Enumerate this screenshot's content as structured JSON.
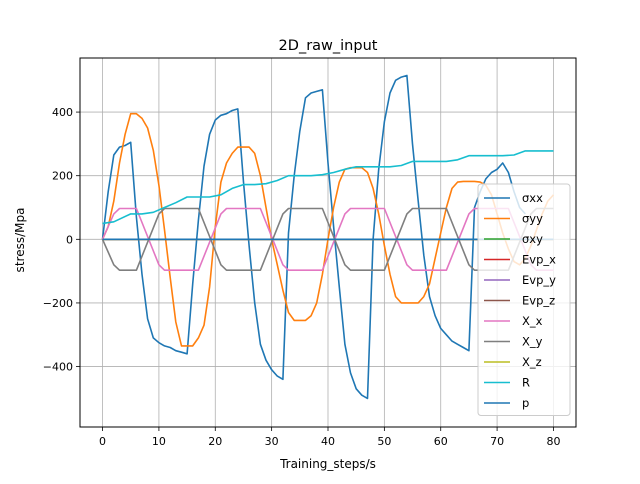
{
  "chart_data": {
    "type": "line",
    "title": "2D_raw_input",
    "xlabel": "Training_steps/s",
    "ylabel": "stress/Mpa",
    "xlim": [
      -4,
      84
    ],
    "ylim": [
      -590,
      570
    ],
    "xticks": [
      0,
      10,
      20,
      30,
      40,
      50,
      60,
      70,
      80
    ],
    "yticks": [
      -400,
      -200,
      0,
      200,
      400
    ],
    "grid": true,
    "legend_position": "right",
    "series": [
      {
        "name": "σxx",
        "color": "#1f77b4",
        "x": [
          0,
          1,
          2,
          3,
          4,
          5,
          6,
          7,
          8,
          9,
          10,
          11,
          12,
          13,
          14,
          15,
          16,
          17,
          18,
          19,
          20,
          21,
          22,
          23,
          24,
          25,
          26,
          27,
          28,
          29,
          30,
          31,
          32,
          33,
          34,
          35,
          36,
          37,
          38,
          39,
          40,
          41,
          42,
          43,
          44,
          45,
          46,
          47,
          48,
          49,
          50,
          51,
          52,
          53,
          54,
          55,
          56,
          57,
          58,
          59,
          60,
          61,
          62,
          63,
          64,
          65,
          66,
          67,
          68,
          69,
          70,
          71,
          72,
          73,
          74,
          75
        ],
        "y": [
          0,
          150,
          265,
          290,
          295,
          305,
          70,
          -110,
          -250,
          -310,
          -325,
          -335,
          -340,
          -350,
          -355,
          -360,
          -140,
          60,
          230,
          330,
          375,
          390,
          395,
          405,
          410,
          180,
          -20,
          -200,
          -330,
          -380,
          -410,
          -430,
          -440,
          20,
          200,
          340,
          445,
          460,
          465,
          470,
          240,
          40,
          -150,
          -330,
          -420,
          -470,
          -490,
          -500,
          0,
          220,
          370,
          460,
          500,
          510,
          515,
          300,
          120,
          -50,
          -180,
          -240,
          -280,
          -300,
          -320,
          -330,
          -340,
          -350,
          100,
          150,
          190,
          210,
          220,
          240,
          210,
          150,
          100,
          80
        ]
      },
      {
        "name": "σyy",
        "color": "#ff7f0e",
        "x": [
          0,
          1,
          2,
          3,
          4,
          5,
          6,
          7,
          8,
          9,
          10,
          11,
          12,
          13,
          14,
          15,
          16,
          17,
          18,
          19,
          20,
          21,
          22,
          23,
          24,
          25,
          26,
          27,
          28,
          29,
          30,
          31,
          32,
          33,
          34,
          35,
          36,
          37,
          38,
          39,
          40,
          41,
          42,
          43,
          44,
          45,
          46,
          47,
          48,
          49,
          50,
          51,
          52,
          53,
          54,
          55,
          56,
          57,
          58,
          59,
          60,
          61,
          62,
          63,
          64,
          65,
          66,
          67,
          68,
          69,
          70,
          71,
          72,
          73,
          74,
          75,
          76,
          77,
          78,
          79,
          80
        ],
        "y": [
          0,
          40,
          120,
          240,
          330,
          395,
          395,
          380,
          350,
          280,
          170,
          30,
          -120,
          -260,
          -335,
          -335,
          -335,
          -310,
          -270,
          -150,
          40,
          180,
          240,
          270,
          290,
          290,
          290,
          270,
          200,
          100,
          0,
          -80,
          -160,
          -230,
          -255,
          -255,
          -255,
          -240,
          -200,
          -110,
          0,
          100,
          180,
          220,
          225,
          225,
          225,
          210,
          160,
          80,
          -20,
          -110,
          -180,
          -200,
          -200,
          -200,
          -200,
          -180,
          -140,
          -60,
          20,
          100,
          160,
          180,
          182,
          182,
          182,
          180,
          170,
          140,
          80,
          20,
          -30,
          -70,
          -80,
          -60,
          -20,
          30,
          80,
          120,
          140
        ]
      },
      {
        "name": "σxy",
        "color": "#2ca02c",
        "x": [
          0,
          80
        ],
        "y": [
          0,
          0
        ]
      },
      {
        "name": "Evp_x",
        "color": "#d62728",
        "x": [
          0,
          80
        ],
        "y": [
          0,
          0
        ]
      },
      {
        "name": "Evp_y",
        "color": "#9467bd",
        "x": [
          0,
          80
        ],
        "y": [
          0,
          0
        ]
      },
      {
        "name": "Evp_z",
        "color": "#8c564b",
        "x": [
          0,
          80
        ],
        "y": [
          0,
          0
        ]
      },
      {
        "name": "X_x",
        "color": "#e377c2",
        "x": [
          0,
          2,
          3,
          6,
          10,
          11,
          14,
          17,
          21,
          22,
          25,
          28,
          32,
          33,
          36,
          39,
          43,
          44,
          47,
          50,
          54,
          55,
          58,
          61,
          65,
          66,
          69,
          72,
          76,
          77,
          80
        ],
        "y": [
          0,
          80,
          97,
          97,
          -80,
          -97,
          -97,
          -97,
          80,
          97,
          97,
          97,
          -80,
          -97,
          -97,
          -97,
          80,
          97,
          97,
          97,
          -80,
          -97,
          -97,
          -97,
          80,
          97,
          97,
          97,
          -80,
          -97,
          -97
        ]
      },
      {
        "name": "X_y",
        "color": "#7f7f7f",
        "x": [
          0,
          2,
          3,
          6,
          10,
          11,
          14,
          17,
          21,
          22,
          25,
          28,
          32,
          33,
          36,
          39,
          43,
          44,
          47,
          50,
          54,
          55,
          58,
          61,
          65,
          66,
          69,
          72,
          76,
          77,
          80
        ],
        "y": [
          0,
          -80,
          -97,
          -97,
          80,
          97,
          97,
          97,
          -80,
          -97,
          -97,
          -97,
          80,
          97,
          97,
          97,
          -80,
          -97,
          -97,
          -97,
          80,
          97,
          97,
          97,
          -80,
          -97,
          -97,
          -97,
          80,
          97,
          97
        ]
      },
      {
        "name": "X_z",
        "color": "#bcbd22",
        "x": [
          0,
          80
        ],
        "y": [
          0,
          0
        ]
      },
      {
        "name": "R",
        "color": "#17becf",
        "x": [
          0,
          2,
          5,
          7,
          9,
          11,
          13,
          15,
          17,
          19,
          21,
          23,
          25,
          27,
          29,
          31,
          33,
          35,
          37,
          39,
          41,
          43,
          45,
          47,
          49,
          51,
          53,
          55,
          57,
          59,
          61,
          63,
          65,
          67,
          69,
          71,
          73,
          75,
          77,
          80
        ],
        "y": [
          50,
          55,
          80,
          80,
          85,
          100,
          115,
          133,
          133,
          133,
          140,
          160,
          172,
          172,
          175,
          185,
          200,
          200,
          200,
          203,
          210,
          220,
          228,
          228,
          228,
          228,
          232,
          245,
          245,
          245,
          245,
          250,
          263,
          263,
          263,
          263,
          265,
          278,
          278,
          278
        ]
      },
      {
        "name": "p",
        "color": "#1f77b4",
        "x": [
          0,
          80
        ],
        "y": [
          0,
          0
        ]
      }
    ]
  }
}
